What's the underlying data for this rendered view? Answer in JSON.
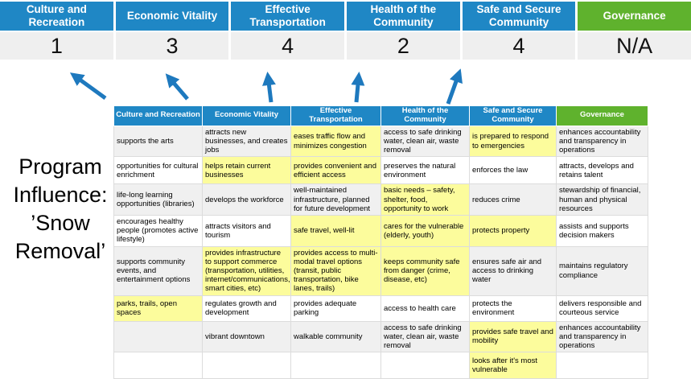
{
  "program_label": {
    "text": "Program Influence: ’Snow Removal’",
    "lines": [
      "Program",
      "Influence:",
      "’Snow",
      "Removal’"
    ]
  },
  "summary": {
    "columns": [
      {
        "label": "Culture and Recreation",
        "score": "1",
        "header_color": "#1F87C5"
      },
      {
        "label": "Economic Vitality",
        "score": "3",
        "header_color": "#1F87C5"
      },
      {
        "label": "Effective Transportation",
        "score": "4",
        "header_color": "#1F87C5"
      },
      {
        "label": "Health of the Community",
        "score": "2",
        "header_color": "#1F87C5"
      },
      {
        "label": "Safe and Secure Community",
        "score": "4",
        "header_color": "#1F87C5"
      },
      {
        "label": "Governance",
        "score": "N/A",
        "header_color": "#5FB22D"
      }
    ]
  },
  "arrows": {
    "color": "#1E79BE",
    "links": [
      {
        "from": "matrix-column-culture-and-recreation",
        "to_score": "1"
      },
      {
        "from": "matrix-column-economic-vitality",
        "to_score": "3"
      },
      {
        "from": "matrix-column-effective-transportation",
        "to_score": "4"
      },
      {
        "from": "matrix-column-health-of-the-community",
        "to_score": "2"
      },
      {
        "from": "matrix-column-safe-and-secure-community",
        "to_score": "4"
      }
    ]
  },
  "colors": {
    "header_blue": "#1F87C5",
    "header_green": "#5FB22D",
    "highlight_yellow": "#FCFC9C",
    "band_gray": "#F0F0F0",
    "arrow_blue": "#1E79BE"
  },
  "grid": {
    "columns": [
      {
        "label": "Culture and Recreation",
        "color": "#1F87C5"
      },
      {
        "label": "Economic Vitality",
        "color": "#1F87C5"
      },
      {
        "label": "Effective Transportation",
        "color": "#1F87C5"
      },
      {
        "label": "Health of the Community",
        "color": "#1F87C5"
      },
      {
        "label": "Safe and Secure Community",
        "color": "#1F87C5"
      },
      {
        "label": "Governance",
        "color": "#5FB22D"
      }
    ],
    "rows": [
      [
        {
          "t": "supports the arts",
          "h": false
        },
        {
          "t": "attracts new businesses, and creates jobs",
          "h": false
        },
        {
          "t": "eases traffic flow and minimizes congestion",
          "h": true
        },
        {
          "t": "access to safe drinking water, clean air, waste removal",
          "h": false
        },
        {
          "t": "is prepared to respond to emergencies",
          "h": true
        },
        {
          "t": "enhances accountability and transparency in operations",
          "h": false
        }
      ],
      [
        {
          "t": "opportunities for cultural enrichment",
          "h": false
        },
        {
          "t": "helps retain current businesses",
          "h": true
        },
        {
          "t": "provides convenient and efficient access",
          "h": true
        },
        {
          "t": "preserves the natural environment",
          "h": false
        },
        {
          "t": "enforces the law",
          "h": false
        },
        {
          "t": "attracts, develops and retains talent",
          "h": false
        }
      ],
      [
        {
          "t": "life-long learning opportunities (libraries)",
          "h": false
        },
        {
          "t": "develops the workforce",
          "h": false
        },
        {
          "t": "well-maintained infrastructure, planned for future development",
          "h": false
        },
        {
          "t": "basic needs – safety, shelter, food, opportunity to work",
          "h": true
        },
        {
          "t": "reduces crime",
          "h": false
        },
        {
          "t": "stewardship of financial, human and physical resources",
          "h": false
        }
      ],
      [
        {
          "t": "encourages healthy people (promotes active lifestyle)",
          "h": false
        },
        {
          "t": "attracts visitors and tourism",
          "h": false
        },
        {
          "t": "safe travel, well-lit",
          "h": true
        },
        {
          "t": "cares for the vulnerable (elderly, youth)",
          "h": true
        },
        {
          "t": "protects property",
          "h": true
        },
        {
          "t": "assists and supports decision makers",
          "h": false
        }
      ],
      [
        {
          "t": "supports community events, and entertainment options",
          "h": false
        },
        {
          "t": "provides infrastructure to support commerce (transportation, utilities, internet/communications, smart cities, etc)",
          "h": true
        },
        {
          "t": "provides access to multi-modal travel options (transit, public transportation, bike lanes, trails)",
          "h": true
        },
        {
          "t": "keeps community safe from danger (crime, disease, etc)",
          "h": true
        },
        {
          "t": "ensures safe air and access to drinking water",
          "h": false
        },
        {
          "t": "maintains regulatory compliance",
          "h": false
        }
      ],
      [
        {
          "t": "parks, trails, open spaces",
          "h": true
        },
        {
          "t": "regulates growth and development",
          "h": false
        },
        {
          "t": "provides adequate parking",
          "h": false
        },
        {
          "t": "access to health care",
          "h": false
        },
        {
          "t": "protects the environment",
          "h": false
        },
        {
          "t": "delivers responsible and courteous service",
          "h": false
        }
      ],
      [
        {
          "t": "",
          "h": false
        },
        {
          "t": "vibrant downtown",
          "h": false
        },
        {
          "t": "walkable community",
          "h": false
        },
        {
          "t": "access to safe drinking water, clean air, waste removal",
          "h": false
        },
        {
          "t": "provides safe travel and mobility",
          "h": true
        },
        {
          "t": "enhances accountability and transparency in operations",
          "h": false
        }
      ],
      [
        {
          "t": "",
          "h": false
        },
        {
          "t": "",
          "h": false
        },
        {
          "t": "",
          "h": false
        },
        {
          "t": "",
          "h": false
        },
        {
          "t": "looks after it's most vulnerable",
          "h": true
        },
        {
          "t": "",
          "h": false
        }
      ]
    ]
  }
}
